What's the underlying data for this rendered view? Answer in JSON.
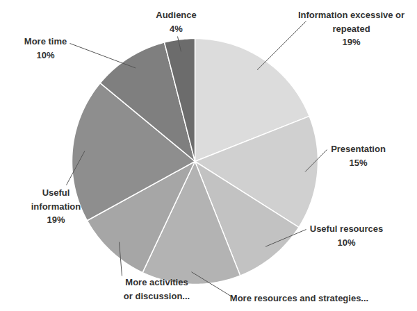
{
  "chart_data": {
    "type": "pie",
    "categories": [
      "Information excessive or repeated",
      "Presentation",
      "Useful resources",
      "More resources and strategies...",
      "More activities or discussion...",
      "Useful information",
      "More time",
      "Audience"
    ],
    "values": [
      19,
      15,
      10,
      13,
      10,
      19,
      10,
      4
    ],
    "value_labels": [
      "19%",
      "15%",
      "10%",
      null,
      null,
      "19%",
      "10%",
      "4%"
    ],
    "colors": [
      "#dcdcdc",
      "#d0d0d0",
      "#c2c2c2",
      "#b3b3b3",
      "#a6a6a6",
      "#8e8e8e",
      "#7f7f7f",
      "#6c6c6c"
    ],
    "data_labels": true
  }
}
